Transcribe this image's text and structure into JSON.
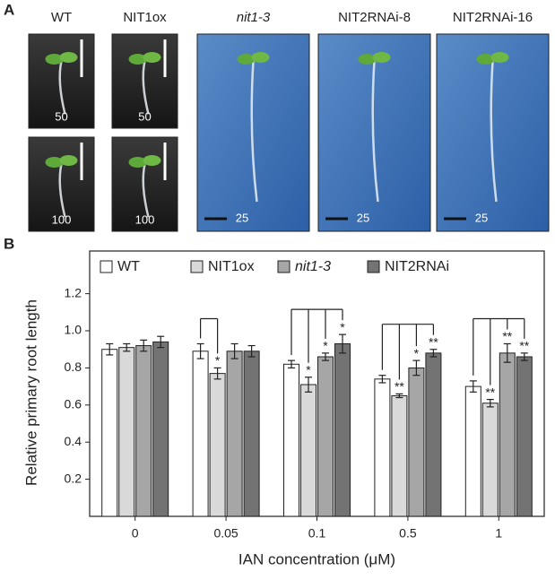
{
  "panel_a": {
    "label": "A",
    "columns": [
      {
        "title": "WT",
        "photos": [
          {
            "scale": "50"
          },
          {
            "scale": "100"
          }
        ]
      },
      {
        "title": "NIT1ox",
        "photos": [
          {
            "scale": "50"
          },
          {
            "scale": "100"
          }
        ]
      },
      {
        "title": "nit1-3",
        "photos": [
          {
            "scale": "25"
          }
        ]
      },
      {
        "title": "NIT2RNAi-8",
        "photos": [
          {
            "scale": "25"
          }
        ]
      },
      {
        "title": "NIT2RNAi-16",
        "photos": [
          {
            "scale": "25"
          }
        ]
      }
    ]
  },
  "chart_data": {
    "type": "bar",
    "panel_label": "B",
    "ylabel": "Relative primary root length",
    "xlabel": "IAN concentration (μM)",
    "categories": [
      "0",
      "0.05",
      "0.1",
      "0.5",
      "1"
    ],
    "ylim": [
      0,
      1.43
    ],
    "yticks": [
      0.2,
      0.4,
      0.6,
      0.8,
      {
        "value": 1,
        "label": "1.0"
      },
      1.2
    ],
    "series": [
      {
        "name": "WT",
        "color": "#ffffff",
        "values": [
          0.9,
          0.89,
          0.82,
          0.74,
          0.7
        ],
        "errors": [
          0.03,
          0.04,
          0.02,
          0.02,
          0.03
        ],
        "significance": [
          null,
          null,
          null,
          null,
          null
        ]
      },
      {
        "name": "NIT1ox",
        "color": "#d9d9d9",
        "values": [
          0.91,
          0.77,
          0.71,
          0.65,
          0.61
        ],
        "errors": [
          0.02,
          0.03,
          0.04,
          0.01,
          0.02
        ],
        "significance": [
          null,
          "*",
          "*",
          "**",
          "**"
        ]
      },
      {
        "name": "nit1-3",
        "color": "#a6a6a6",
        "italic": true,
        "values": [
          0.92,
          0.89,
          0.86,
          0.8,
          0.88
        ],
        "errors": [
          0.03,
          0.04,
          0.02,
          0.04,
          0.05
        ],
        "significance": [
          null,
          null,
          "*",
          "*",
          "**"
        ]
      },
      {
        "name": "NIT2RNAi",
        "color": "#737373",
        "values": [
          0.94,
          0.89,
          0.93,
          0.88,
          0.86
        ],
        "errors": [
          0.03,
          0.03,
          0.05,
          0.02,
          0.02
        ],
        "significance": [
          null,
          null,
          "*",
          "**",
          "**"
        ]
      }
    ]
  }
}
